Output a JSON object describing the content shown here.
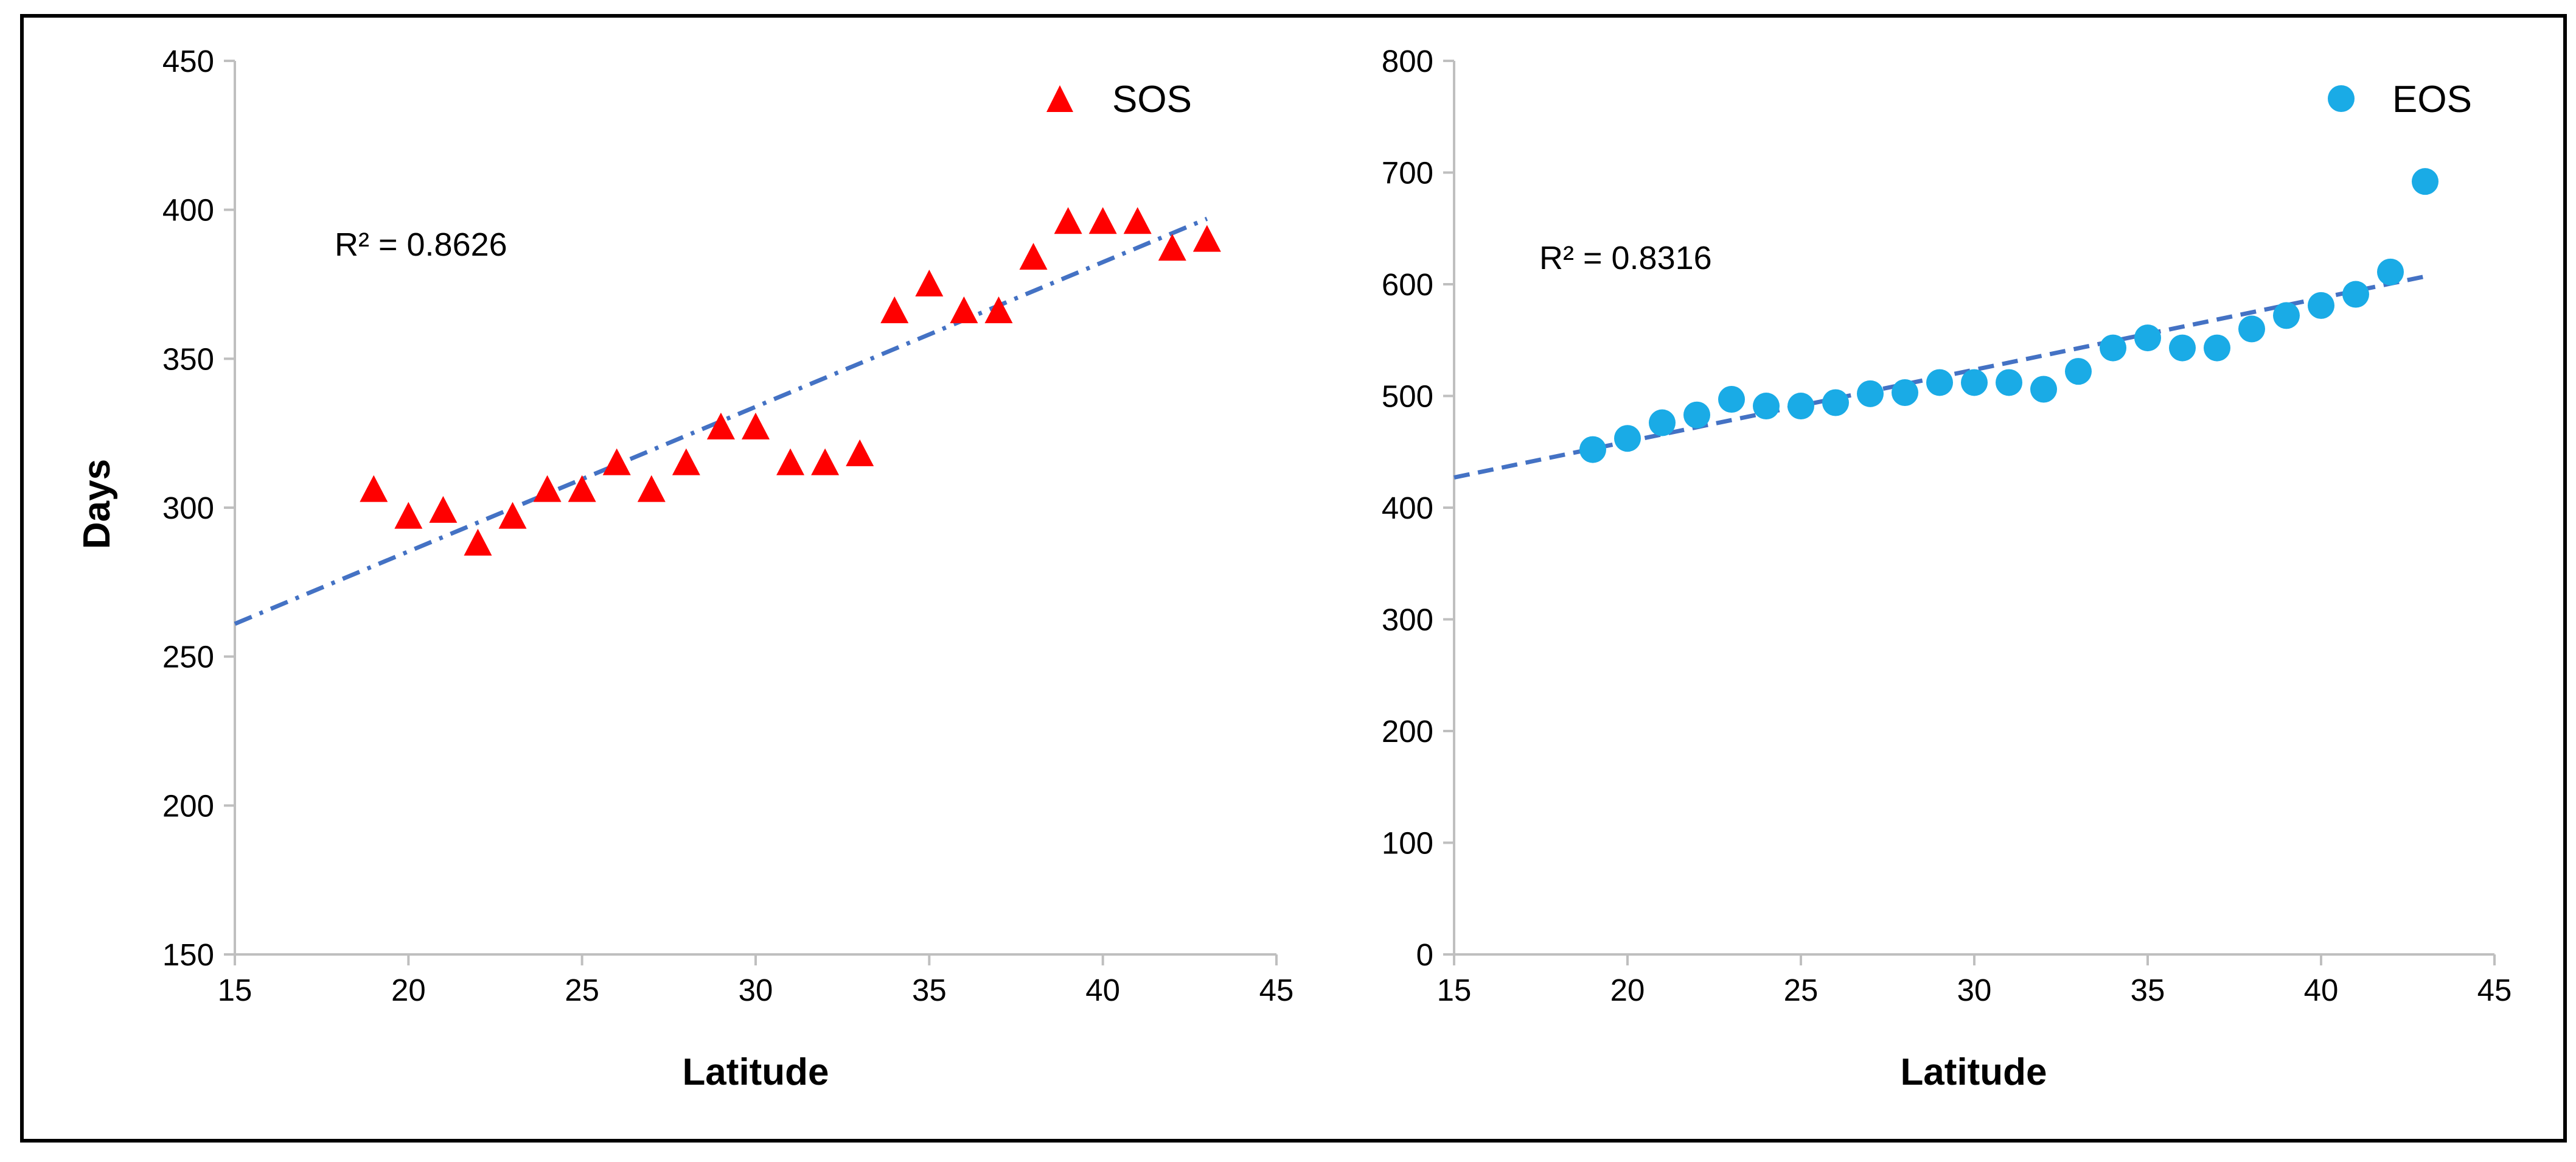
{
  "chart_data": [
    {
      "type": "scatter",
      "xlabel": "Latitude",
      "ylabel": "Days",
      "xlim": [
        15,
        45
      ],
      "ylim": [
        150,
        450
      ],
      "xticks": [
        "15",
        "20",
        "25",
        "30",
        "35",
        "40",
        "45"
      ],
      "yticks": [
        "150",
        "200",
        "250",
        "300",
        "350",
        "400",
        "450"
      ],
      "legend": "top-right",
      "series": [
        {
          "name": "SOS",
          "marker": "triangle",
          "color": "#ff0000",
          "x": [
            19,
            20,
            21,
            22,
            23,
            24,
            25,
            26,
            27,
            28,
            29,
            30,
            31,
            32,
            33,
            34,
            35,
            36,
            37,
            38,
            39,
            40,
            41,
            42,
            43
          ],
          "y": [
            306,
            297,
            299,
            288,
            297,
            306,
            306,
            315,
            306,
            315,
            327,
            327,
            315,
            315,
            318,
            366,
            375,
            366,
            366,
            384,
            396,
            396,
            396,
            387,
            390
          ]
        }
      ],
      "trendline": {
        "color": "#4472c4",
        "x": [
          15,
          43
        ],
        "y": [
          261,
          397
        ],
        "style": "dash-dot"
      },
      "annotation": "R² = 0.8626"
    },
    {
      "type": "scatter",
      "xlabel": "Latitude",
      "ylabel": "",
      "xlim": [
        15,
        45
      ],
      "ylim": [
        0,
        800
      ],
      "xticks": [
        "15",
        "20",
        "25",
        "30",
        "35",
        "40",
        "45"
      ],
      "yticks": [
        "0",
        "100",
        "200",
        "300",
        "400",
        "500",
        "600",
        "700",
        "800"
      ],
      "legend": "top-right",
      "series": [
        {
          "name": "EOS",
          "marker": "circle",
          "color": "#1aabe6",
          "x": [
            19,
            20,
            21,
            22,
            23,
            24,
            25,
            26,
            27,
            28,
            29,
            30,
            31,
            32,
            33,
            34,
            35,
            36,
            37,
            38,
            39,
            40,
            41,
            42,
            43
          ],
          "y": [
            452,
            462,
            476,
            483,
            497,
            491,
            491,
            494,
            502,
            503,
            512,
            512,
            512,
            506,
            522,
            543,
            552,
            543,
            543,
            560,
            572,
            581,
            591,
            611,
            692
          ]
        }
      ],
      "trendline": {
        "color": "#4472c4",
        "x": [
          15,
          43
        ],
        "y": [
          427,
          607
        ],
        "style": "dashed"
      },
      "annotation": "R² = 0.8316"
    }
  ]
}
